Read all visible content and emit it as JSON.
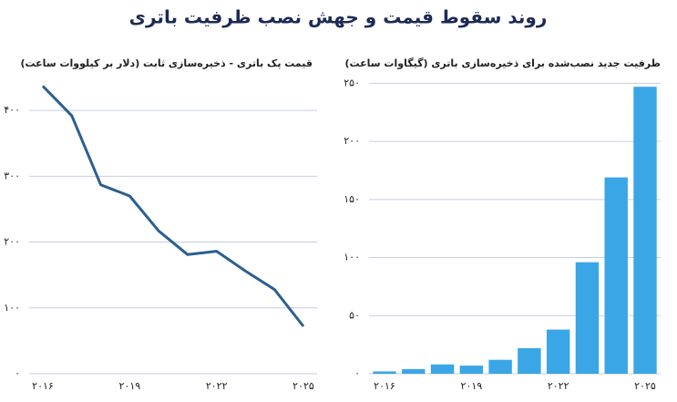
{
  "title": "روند سقوط قیمت و جهش نصب ظرفیت باتری",
  "chart_data": [
    {
      "type": "line",
      "title": "قیمت پک باتری - ذخیره‌سازی ثابت (دلار بر کیلووات ساعت)",
      "categories": [
        "۲۰۱۶",
        null,
        null,
        "۲۰۱۹",
        null,
        null,
        "۲۰۲۲",
        null,
        null,
        "۲۰۲۵"
      ],
      "values": [
        437,
        392,
        287,
        270,
        217,
        181,
        186,
        156,
        128,
        72
      ],
      "color": "#2b5f91",
      "ylim": [
        0,
        450
      ],
      "yticks": [
        {
          "value": 0,
          "label": "۰"
        },
        {
          "value": 100,
          "label": "۱۰۰"
        },
        {
          "value": 200,
          "label": "۲۰۰"
        },
        {
          "value": 300,
          "label": "۳۰۰"
        },
        {
          "value": 400,
          "label": "۴۰۰"
        }
      ],
      "grid": true
    },
    {
      "type": "bar",
      "title": "ظرفیت جدید نصب‌شده برای ذخیره‌سازی باتری (گیگاوات ساعت)",
      "categories": [
        "۲۰۱۶",
        null,
        null,
        "۲۰۱۹",
        null,
        null,
        "۲۰۲۲",
        null,
        null,
        "۲۰۲۵"
      ],
      "values": [
        2,
        4,
        8,
        7,
        12,
        22,
        38,
        96,
        169,
        247
      ],
      "color": "#3aa6e6",
      "ylim": [
        0,
        255
      ],
      "yticks": [
        {
          "value": 0,
          "label": "۰"
        },
        {
          "value": 50,
          "label": "۵۰"
        },
        {
          "value": 100,
          "label": "۱۰۰"
        },
        {
          "value": 150,
          "label": "۱۵۰"
        },
        {
          "value": 200,
          "label": "۲۰۰"
        },
        {
          "value": 250,
          "label": "۲۵۰"
        }
      ],
      "grid": true
    }
  ]
}
